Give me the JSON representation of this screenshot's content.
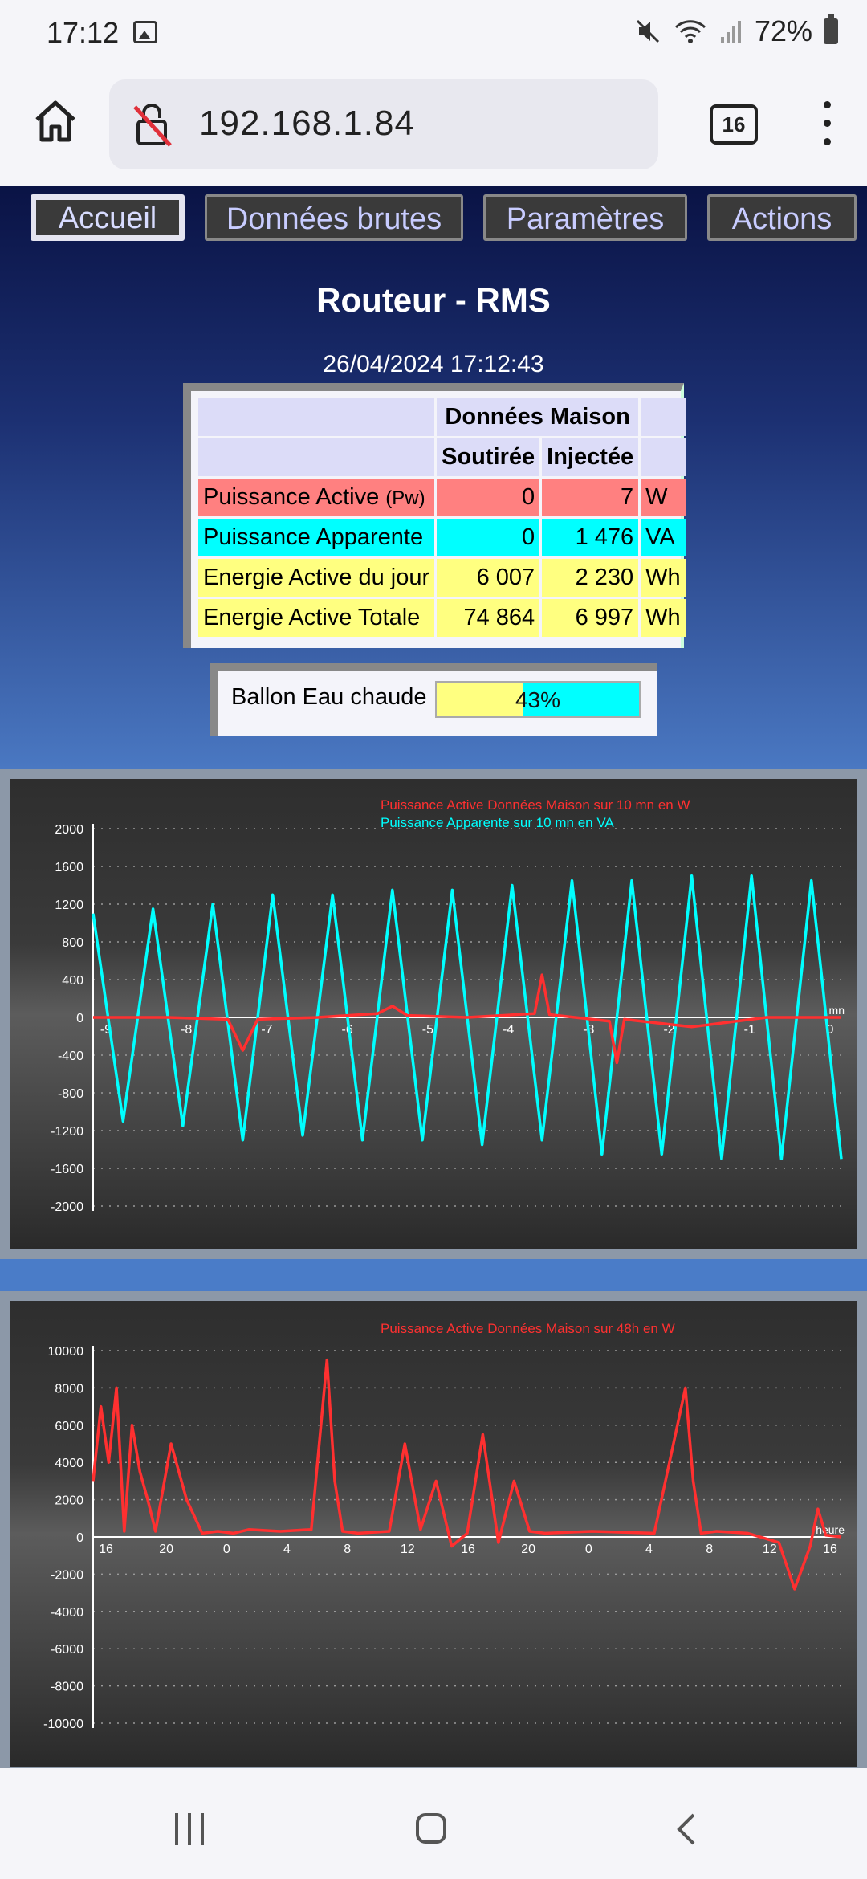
{
  "status_bar": {
    "time": "17:12",
    "battery": "72%"
  },
  "browser": {
    "url": "192.168.1.84",
    "tab_count": "16"
  },
  "nav": [
    "Accueil",
    "Données brutes",
    "Paramètres",
    "Actions"
  ],
  "title": "Routeur - RMS",
  "datetime": "26/04/2024 17:12:43",
  "table": {
    "group_header": "Données Maison",
    "col_soutiree": "Soutirée",
    "col_injectee": "Injectée",
    "rows": [
      {
        "label": "Puissance Active",
        "label_suffix": "(Pw)",
        "soutiree": "0",
        "injectee": "7",
        "unit": "W",
        "color": "#ff8080"
      },
      {
        "label": "Puissance Apparente",
        "soutiree": "0",
        "injectee": "1 476",
        "unit": "VA",
        "color": "#00ffff"
      },
      {
        "label": "Energie Active du jour",
        "soutiree": "6 007",
        "injectee": "2 230",
        "unit": "Wh",
        "color": "#ffff80"
      },
      {
        "label": "Energie Active Totale",
        "soutiree": "74 864",
        "injectee": "6 997",
        "unit": "Wh",
        "color": "#ffff80"
      }
    ]
  },
  "ballon": {
    "label": "Ballon Eau chaude",
    "percent_text": "43%",
    "level": 0.43
  },
  "chart_data": [
    {
      "type": "line",
      "ylim": [
        -2000,
        2000
      ],
      "yticks": [
        "2000",
        "1600",
        "1200",
        "800",
        "400",
        "0",
        "-400",
        "-800",
        "-1200",
        "-1600",
        "-2000"
      ],
      "xticks": [
        "-9",
        "-8",
        "-7",
        "-6",
        "-5",
        "-4",
        "-3",
        "-2",
        "-1",
        "0"
      ],
      "xunit": "mn",
      "series": [
        {
          "name": "Puissance Active Données Maison sur 10 mn en W",
          "color": "#ff3030",
          "x": [
            -10,
            -9,
            -8.2,
            -8,
            -7.8,
            -7,
            -6.2,
            -6,
            -5.8,
            -5,
            -4.1,
            -4,
            -3.9,
            -3.1,
            -3,
            -2.9,
            -2,
            -1,
            0
          ],
          "values": [
            0,
            0,
            -20,
            -350,
            -20,
            0,
            40,
            120,
            20,
            0,
            40,
            450,
            30,
            -40,
            -480,
            -20,
            -100,
            0,
            0
          ]
        },
        {
          "name": "Puissance Apparente sur 10 mn en VA",
          "color": "#00ffff",
          "x": [
            -10,
            -9.6,
            -9.2,
            -8.8,
            -8.4,
            -8,
            -7.6,
            -7.2,
            -6.8,
            -6.4,
            -6,
            -5.6,
            -5.2,
            -4.8,
            -4.4,
            -4,
            -3.6,
            -3.2,
            -2.8,
            -2.4,
            -2,
            -1.6,
            -1.2,
            -0.8,
            -0.4,
            0
          ],
          "values": [
            1100,
            -1100,
            1150,
            -1150,
            1200,
            -1300,
            1300,
            -1250,
            1300,
            -1300,
            1350,
            -1300,
            1350,
            -1350,
            1400,
            -1300,
            1450,
            -1450,
            1450,
            -1450,
            1500,
            -1500,
            1500,
            -1500,
            1450,
            -1500
          ]
        }
      ]
    },
    {
      "type": "line",
      "ylim": [
        -10000,
        10000
      ],
      "yticks": [
        "10000",
        "8000",
        "6000",
        "4000",
        "2000",
        "0",
        "-2000",
        "-4000",
        "-6000",
        "-8000",
        "-10000"
      ],
      "xticks": [
        "16",
        "20",
        "0",
        "4",
        "8",
        "12",
        "16",
        "20",
        "0",
        "4",
        "8",
        "12",
        "16"
      ],
      "xunit": "heure",
      "series": [
        {
          "name": "Puissance Active Données Maison sur 48h en W",
          "color": "#ff3030",
          "x": [
            0,
            0.5,
            1,
            1.5,
            2,
            2.5,
            3,
            3.5,
            4,
            5,
            6,
            7,
            8,
            9,
            10,
            12,
            14,
            15,
            15.5,
            16,
            17,
            19,
            20,
            21,
            22,
            23,
            24,
            25,
            26,
            27,
            28,
            29,
            32,
            36,
            38,
            38.5,
            39,
            40,
            42,
            44,
            45,
            46,
            46.5,
            47,
            48
          ],
          "values": [
            3000,
            7000,
            4000,
            8000,
            300,
            6000,
            3500,
            2000,
            300,
            5000,
            2000,
            200,
            300,
            200,
            400,
            300,
            400,
            9500,
            3000,
            300,
            200,
            300,
            5000,
            400,
            3000,
            -500,
            200,
            5500,
            -300,
            3000,
            300,
            200,
            300,
            200,
            8000,
            3000,
            200,
            300,
            200,
            -300,
            -2800,
            -500,
            1500,
            100,
            0
          ]
        }
      ]
    }
  ]
}
